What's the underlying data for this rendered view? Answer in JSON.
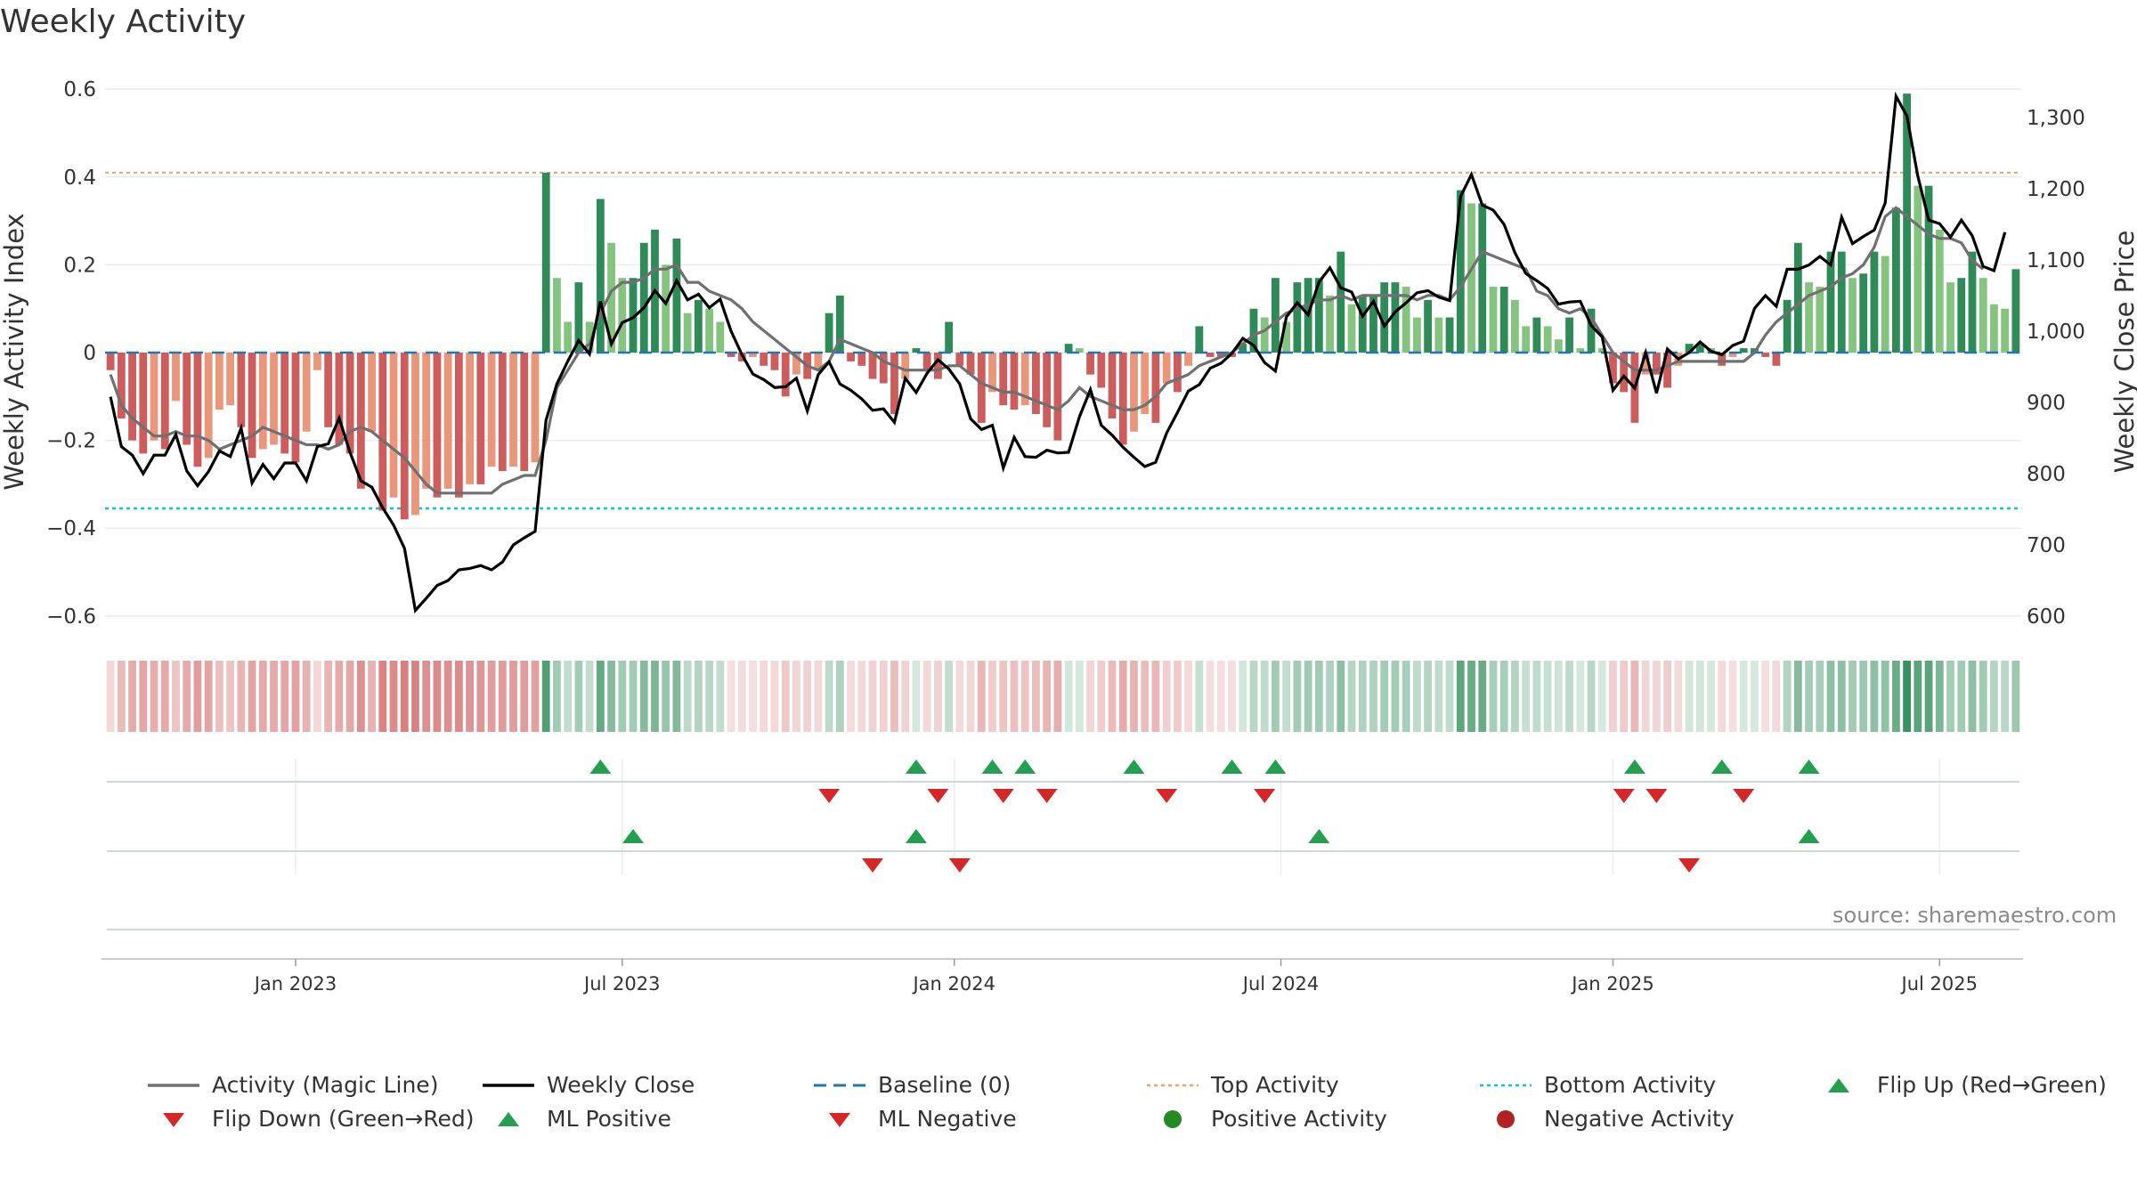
{
  "title": "Weekly Activity",
  "source": "source: sharemaestro.com",
  "colors": {
    "pos_dark": "#2e8b57",
    "pos_light": "#85c47f",
    "neg_dark": "#cd5c5c",
    "neg_light": "#e9967a",
    "magic": "#707070",
    "close": "#000000",
    "baseline": "#1f77b4",
    "top": "#f4a261",
    "bottom": "#17becf",
    "up": "#22a050",
    "down": "#d62728",
    "dot_pos": "#228b22",
    "dot_neg": "#b22222"
  },
  "chart_data": {
    "type": "bar",
    "title": "Weekly Activity",
    "ylabel": "Weekly Activity Index",
    "y2label": "Weekly Close Price",
    "ylim": [
      -0.65,
      0.63
    ],
    "y2lim": [
      590,
      1340
    ],
    "yticks": [
      "0.6",
      "0.4",
      "0.2",
      "0",
      "−0.2",
      "−0.4",
      "−0.6"
    ],
    "ytick_values": [
      0.6,
      0.4,
      0.2,
      0,
      -0.2,
      -0.4,
      -0.6
    ],
    "y2ticks": [
      "1,300",
      "1,200",
      "1,100",
      "1,000",
      "900",
      "800",
      "700",
      "600"
    ],
    "y2tick_values": [
      1300,
      1200,
      1100,
      1000,
      900,
      800,
      700,
      600
    ],
    "xticks": [
      "Jan 2023",
      "Jul 2023",
      "Jan 2024",
      "Jul 2024",
      "Jan 2025",
      "Jul 2025"
    ],
    "xtick_weeks": [
      17.5,
      47.5,
      78,
      108,
      138.5,
      168.5
    ],
    "top_activity": 0.41,
    "bottom_activity": -0.355,
    "activity": [
      -0.04,
      -0.15,
      -0.2,
      -0.23,
      -0.2,
      -0.22,
      -0.11,
      -0.21,
      -0.26,
      -0.24,
      -0.13,
      -0.12,
      -0.17,
      -0.24,
      -0.22,
      -0.21,
      -0.23,
      -0.25,
      -0.18,
      -0.04,
      -0.17,
      -0.21,
      -0.23,
      -0.31,
      -0.18,
      -0.36,
      -0.33,
      -0.38,
      -0.37,
      -0.31,
      -0.33,
      -0.31,
      -0.33,
      -0.3,
      -0.3,
      -0.26,
      -0.27,
      -0.26,
      -0.27,
      -0.25,
      0.41,
      0.17,
      0.07,
      0.16,
      0.07,
      0.35,
      0.25,
      0.17,
      0.17,
      0.25,
      0.28,
      0.2,
      0.26,
      0.09,
      0.12,
      0.1,
      0.07,
      -0.01,
      -0.02,
      -0.01,
      -0.03,
      -0.04,
      -0.1,
      -0.05,
      -0.06,
      -0.04,
      0.09,
      0.13,
      -0.02,
      -0.03,
      -0.06,
      -0.07,
      -0.14,
      -0.06,
      0.01,
      -0.04,
      -0.06,
      0.07,
      -0.03,
      -0.05,
      -0.16,
      -0.09,
      -0.12,
      -0.13,
      -0.12,
      -0.14,
      -0.17,
      -0.2,
      0.02,
      0.01,
      -0.05,
      -0.08,
      -0.15,
      -0.21,
      -0.18,
      -0.14,
      -0.16,
      -0.07,
      -0.09,
      -0.03,
      0.06,
      -0.01,
      -0.01,
      -0.01,
      0.02,
      0.1,
      0.08,
      0.17,
      0.07,
      0.16,
      0.17,
      0.17,
      0.13,
      0.23,
      0.11,
      0.13,
      0.13,
      0.16,
      0.16,
      0.15,
      0.08,
      0.12,
      0.08,
      0.08,
      0.37,
      0.34,
      0.34,
      0.15,
      0.15,
      0.12,
      0.06,
      0.08,
      0.06,
      0.03,
      0.08,
      0.01,
      0.1,
      0.01,
      -0.07,
      -0.09,
      -0.16,
      -0.05,
      -0.05,
      -0.08,
      -0.03,
      0.02,
      0.02,
      0.01,
      -0.03,
      -0.01,
      0.01,
      0.01,
      -0.01,
      -0.03,
      0.12,
      0.25,
      0.16,
      0.15,
      0.23,
      0.23,
      0.17,
      0.18,
      0.23,
      0.22,
      0.33,
      0.59,
      0.38,
      0.38,
      0.28,
      0.16,
      0.17,
      0.23,
      0.17,
      0.11,
      0.1,
      0.19
    ],
    "magic_line": [
      -0.05,
      -0.12,
      -0.15,
      -0.17,
      -0.19,
      -0.19,
      -0.18,
      -0.19,
      -0.19,
      -0.2,
      -0.22,
      -0.21,
      -0.2,
      -0.19,
      -0.17,
      -0.18,
      -0.19,
      -0.2,
      -0.21,
      -0.21,
      -0.22,
      -0.21,
      -0.18,
      -0.17,
      -0.18,
      -0.2,
      -0.22,
      -0.24,
      -0.27,
      -0.3,
      -0.32,
      -0.32,
      -0.32,
      -0.32,
      -0.32,
      -0.32,
      -0.3,
      -0.29,
      -0.28,
      -0.28,
      -0.2,
      -0.08,
      -0.04,
      0.0,
      0.02,
      0.09,
      0.14,
      0.16,
      0.16,
      0.17,
      0.19,
      0.19,
      0.2,
      0.16,
      0.16,
      0.14,
      0.13,
      0.12,
      0.1,
      0.07,
      0.05,
      0.03,
      0.01,
      -0.01,
      -0.03,
      -0.04,
      -0.02,
      0.03,
      0.02,
      0.01,
      0.0,
      -0.02,
      -0.03,
      -0.04,
      -0.04,
      -0.04,
      -0.04,
      -0.03,
      -0.03,
      -0.05,
      -0.07,
      -0.08,
      -0.09,
      -0.09,
      -0.1,
      -0.11,
      -0.12,
      -0.13,
      -0.11,
      -0.08,
      -0.1,
      -0.11,
      -0.12,
      -0.13,
      -0.13,
      -0.12,
      -0.1,
      -0.07,
      -0.06,
      -0.05,
      -0.03,
      -0.02,
      -0.01,
      0.0,
      0.02,
      0.04,
      0.05,
      0.07,
      0.09,
      0.1,
      0.11,
      0.12,
      0.12,
      0.13,
      0.12,
      0.13,
      0.13,
      0.13,
      0.13,
      0.13,
      0.12,
      0.13,
      0.13,
      0.12,
      0.15,
      0.19,
      0.23,
      0.22,
      0.21,
      0.2,
      0.19,
      0.14,
      0.13,
      0.1,
      0.09,
      0.1,
      0.08,
      0.04,
      0.0,
      -0.02,
      -0.04,
      -0.04,
      -0.04,
      -0.03,
      -0.02,
      -0.02,
      -0.02,
      -0.02,
      -0.02,
      -0.02,
      -0.02,
      0.0,
      0.04,
      0.07,
      0.09,
      0.11,
      0.13,
      0.14,
      0.15,
      0.17,
      0.18,
      0.2,
      0.24,
      0.31,
      0.33,
      0.31,
      0.29,
      0.27,
      0.26,
      0.26,
      0.25,
      0.21,
      0.19
    ],
    "weekly_close": [
      908,
      838,
      826,
      800,
      826,
      826,
      855,
      804,
      783,
      803,
      832,
      824,
      864,
      787,
      813,
      793,
      815,
      815,
      790,
      838,
      842,
      878,
      830,
      790,
      781,
      752,
      728,
      695,
      608,
      625,
      643,
      650,
      665,
      667,
      671,
      665,
      676,
      700,
      710,
      719,
      875,
      926,
      958,
      987,
      968,
      1042,
      982,
      1012,
      1019,
      1033,
      1057,
      1039,
      1071,
      1044,
      1052,
      1033,
      1045,
      1000,
      967,
      940,
      932,
      921,
      922,
      934,
      888,
      939,
      957,
      926,
      917,
      905,
      889,
      891,
      872,
      934,
      914,
      941,
      960,
      947,
      926,
      877,
      862,
      868,
      808,
      851,
      824,
      823,
      833,
      829,
      830,
      880,
      918,
      868,
      854,
      837,
      823,
      810,
      816,
      857,
      886,
      916,
      925,
      948,
      955,
      969,
      990,
      980,
      956,
      944,
      1020,
      1040,
      1023,
      1069,
      1089,
      1061,
      1055,
      1021,
      1042,
      1007,
      1027,
      1040,
      1054,
      1057,
      1048,
      1043,
      1189,
      1220,
      1177,
      1170,
      1150,
      1110,
      1081,
      1071,
      1060,
      1038,
      1041,
      1042,
      1008,
      992,
      917,
      937,
      920,
      970,
      913,
      975,
      961,
      970,
      985,
      972,
      967,
      980,
      986,
      1032,
      1050,
      1035,
      1087,
      1087,
      1093,
      1105,
      1093,
      1160,
      1123,
      1133,
      1142,
      1180,
      1330,
      1302,
      1218,
      1156,
      1151,
      1132,
      1156,
      1134,
      1091,
      1085,
      1139
    ],
    "flip_up_weeks": [
      45,
      74,
      81,
      84,
      94,
      103,
      107,
      140,
      148,
      156
    ],
    "flip_down_weeks": [
      66,
      76,
      82,
      86,
      97,
      106,
      139,
      142,
      150
    ],
    "ml_positive_weeks": [
      48,
      74,
      111,
      156
    ],
    "ml_negative_weeks": [
      70,
      78,
      145
    ]
  },
  "legend": [
    {
      "label": "Activity (Magic Line)",
      "icon": "gray-line"
    },
    {
      "label": "Weekly Close",
      "icon": "black-line"
    },
    {
      "label": "Baseline (0)",
      "icon": "blue-dashed-line"
    },
    {
      "label": "Top Activity",
      "icon": "orange-dotted-line"
    },
    {
      "label": "Bottom Activity",
      "icon": "cyan-dotted-line"
    },
    {
      "label": "Flip Up (Red→Green)",
      "icon": "triangle-up"
    },
    {
      "label": "Flip Down (Green→Red)",
      "icon": "triangle-down"
    },
    {
      "label": "ML Positive",
      "icon": "triangle-up"
    },
    {
      "label": "ML Negative",
      "icon": "triangle-down"
    },
    {
      "label": "Positive Activity",
      "icon": "green-dot"
    },
    {
      "label": "Negative Activity",
      "icon": "red-dot"
    }
  ]
}
